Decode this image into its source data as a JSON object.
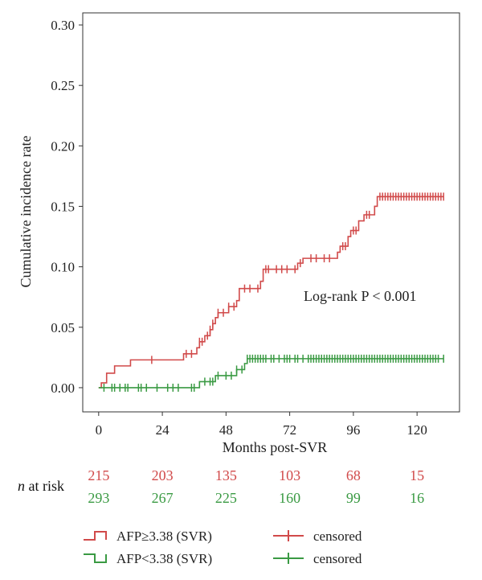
{
  "chart_data": {
    "type": "line",
    "subtype": "step (cumulative incidence)",
    "title": "",
    "xlabel": "Months post-SVR",
    "ylabel": "Cumulative incidence rate",
    "xlim": [
      -6,
      136
    ],
    "ylim": [
      -0.02,
      0.31
    ],
    "x_ticks": [
      0,
      24,
      48,
      72,
      96,
      120
    ],
    "y_ticks": [
      0.0,
      0.05,
      0.1,
      0.15,
      0.2,
      0.25,
      0.3
    ],
    "y_tick_labels": [
      "0.00",
      "0.05",
      "0.10",
      "0.15",
      "0.20",
      "0.25",
      "0.30"
    ],
    "grid": false,
    "annotation": "Log-rank P < 0.001",
    "series": [
      {
        "name": "AFP≥3.38 (SVR)",
        "color": "#d14a4a",
        "steps": [
          [
            0,
            0.0
          ],
          [
            1,
            0.004
          ],
          [
            3,
            0.012
          ],
          [
            6,
            0.018
          ],
          [
            12,
            0.023
          ],
          [
            32,
            0.028
          ],
          [
            37,
            0.033
          ],
          [
            38,
            0.038
          ],
          [
            40,
            0.043
          ],
          [
            42,
            0.048
          ],
          [
            43,
            0.053
          ],
          [
            44,
            0.058
          ],
          [
            45,
            0.062
          ],
          [
            49,
            0.067
          ],
          [
            52,
            0.072
          ],
          [
            53,
            0.082
          ],
          [
            61,
            0.088
          ],
          [
            62,
            0.098
          ],
          [
            75,
            0.103
          ],
          [
            77,
            0.107
          ],
          [
            90,
            0.112
          ],
          [
            91,
            0.117
          ],
          [
            94,
            0.125
          ],
          [
            95,
            0.13
          ],
          [
            98,
            0.138
          ],
          [
            100,
            0.143
          ],
          [
            104,
            0.15
          ],
          [
            105,
            0.158
          ],
          [
            130,
            0.158
          ]
        ],
        "censored_x": [
          20,
          33,
          35,
          38,
          39,
          41,
          42,
          43,
          45,
          47,
          49,
          51,
          55,
          57,
          60,
          63,
          64,
          67,
          69,
          71,
          74,
          76,
          80,
          82,
          85,
          87,
          92,
          93,
          96,
          97,
          101,
          102,
          106,
          107,
          108,
          109,
          110,
          111,
          112,
          113,
          114,
          115,
          116,
          117,
          118,
          119,
          120,
          121,
          122,
          123,
          124,
          125,
          126,
          127,
          128,
          129,
          130
        ]
      },
      {
        "name": "AFP<3.38 (SVR)",
        "color": "#3a9a43",
        "steps": [
          [
            0,
            0.0
          ],
          [
            38,
            0.005
          ],
          [
            44,
            0.01
          ],
          [
            52,
            0.015
          ],
          [
            55,
            0.02
          ],
          [
            56,
            0.024
          ],
          [
            130,
            0.024
          ]
        ],
        "censored_x": [
          2,
          5,
          6,
          8,
          10,
          11,
          15,
          16,
          18,
          22,
          26,
          28,
          30,
          35,
          36,
          40,
          42,
          43,
          45,
          48,
          50,
          52,
          54,
          56,
          57,
          58,
          59,
          60,
          61,
          62,
          63,
          65,
          66,
          68,
          70,
          71,
          72,
          74,
          75,
          77,
          79,
          80,
          81,
          82,
          83,
          84,
          85,
          86,
          87,
          88,
          89,
          90,
          91,
          92,
          93,
          94,
          95,
          96,
          97,
          98,
          99,
          100,
          101,
          102,
          103,
          104,
          105,
          106,
          107,
          108,
          109,
          110,
          111,
          112,
          113,
          114,
          115,
          116,
          117,
          118,
          119,
          120,
          121,
          122,
          123,
          124,
          125,
          126,
          127,
          128,
          130
        ]
      }
    ],
    "risk_table": {
      "label_italic": "n",
      "label_rest": " at risk",
      "x": [
        0,
        24,
        48,
        72,
        96,
        120
      ],
      "rows": [
        {
          "values": [
            "215",
            "203",
            "135",
            "103",
            "68",
            "15"
          ],
          "color": "#d14a4a"
        },
        {
          "values": [
            "293",
            "267",
            "225",
            "160",
            "99",
            "16"
          ],
          "color": "#3a9a43"
        }
      ]
    },
    "legend": {
      "position": "bottom",
      "entries": [
        {
          "label": "AFP≥3.38 (SVR)",
          "censor_label": "censored",
          "color": "#d14a4a",
          "shape": "up"
        },
        {
          "label": "AFP<3.38 (SVR)",
          "censor_label": "censored",
          "color": "#3a9a43",
          "shape": "down"
        }
      ]
    }
  }
}
